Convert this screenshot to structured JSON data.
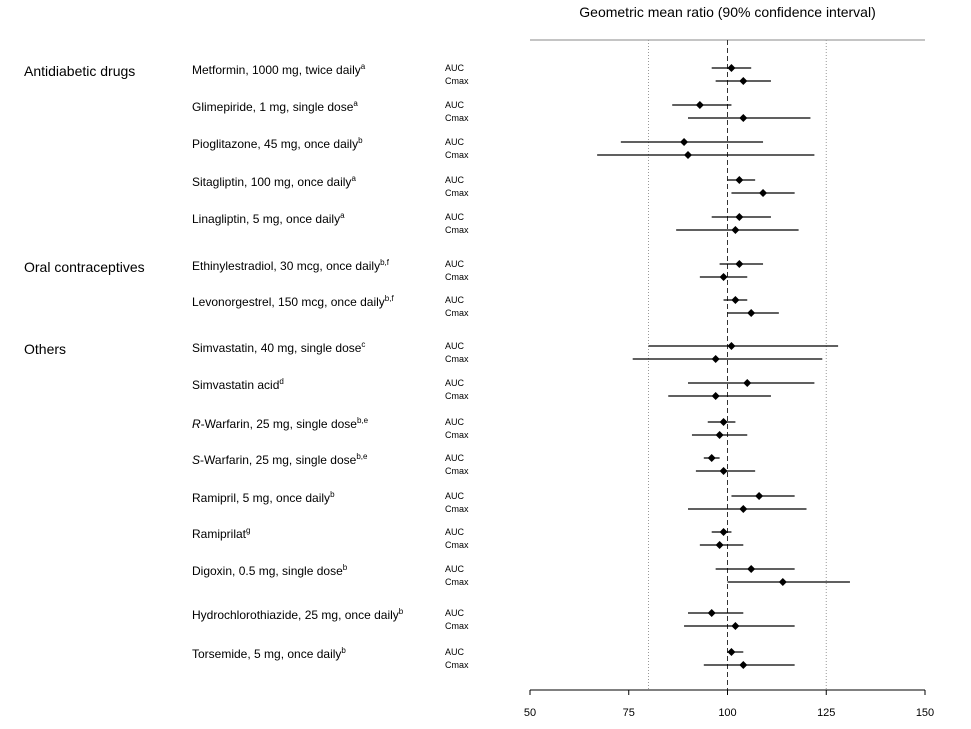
{
  "chart_data": {
    "type": "forest",
    "title": "Geometric mean ratio (90% confidence interval)",
    "xlim": [
      50,
      150
    ],
    "xticks": [
      "50",
      "75",
      "100",
      "125",
      "150"
    ],
    "reference_line": 100,
    "dotted_lines": [
      80,
      125
    ],
    "measure_labels": [
      "AUC",
      "Cmax"
    ],
    "groups": [
      {
        "name": "Antidiabetic drugs",
        "drugs": [
          {
            "label": "Metformin, 1000 mg, twice daily",
            "sup": "a",
            "auc": {
              "est": 101,
              "lo": 96,
              "hi": 106
            },
            "cmax": {
              "est": 104,
              "lo": 97,
              "hi": 111
            }
          },
          {
            "label": "Glimepiride, 1 mg, single dose",
            "sup": "a",
            "auc": {
              "est": 93,
              "lo": 86,
              "hi": 101
            },
            "cmax": {
              "est": 104,
              "lo": 90,
              "hi": 121
            }
          },
          {
            "label": "Pioglitazone, 45 mg, once daily",
            "sup": "b",
            "auc": {
              "est": 89,
              "lo": 73,
              "hi": 109
            },
            "cmax": {
              "est": 90,
              "lo": 67,
              "hi": 122
            }
          },
          {
            "label": "Sitagliptin, 100 mg, once daily",
            "sup": "a",
            "auc": {
              "est": 103,
              "lo": 100,
              "hi": 107
            },
            "cmax": {
              "est": 109,
              "lo": 101,
              "hi": 117
            }
          },
          {
            "label": "Linagliptin, 5 mg, once daily",
            "sup": "a",
            "auc": {
              "est": 103,
              "lo": 96,
              "hi": 111
            },
            "cmax": {
              "est": 102,
              "lo": 87,
              "hi": 118
            }
          }
        ]
      },
      {
        "name": "Oral contraceptives",
        "drugs": [
          {
            "label": "Ethinylestradiol, 30 mcg, once daily",
            "sup": "b,f",
            "auc": {
              "est": 103,
              "lo": 98,
              "hi": 109
            },
            "cmax": {
              "est": 99,
              "lo": 93,
              "hi": 105
            }
          },
          {
            "label": "Levonorgestrel, 150 mcg, once daily",
            "sup": "b,f",
            "auc": {
              "est": 102,
              "lo": 99,
              "hi": 105
            },
            "cmax": {
              "est": 106,
              "lo": 100,
              "hi": 113
            }
          }
        ]
      },
      {
        "name": "Others",
        "drugs": [
          {
            "label": "Simvastatin, 40 mg, single dose",
            "sup": "c",
            "auc": {
              "est": 101,
              "lo": 80,
              "hi": 128
            },
            "cmax": {
              "est": 97,
              "lo": 76,
              "hi": 124
            }
          },
          {
            "label": "Simvastatin acid",
            "sup": "d",
            "auc": {
              "est": 105,
              "lo": 90,
              "hi": 122
            },
            "cmax": {
              "est": 97,
              "lo": 85,
              "hi": 111
            }
          },
          {
            "label": "-Warfarin, 25 mg, single dose",
            "italic_prefix": "R",
            "sup": "b,e",
            "auc": {
              "est": 99,
              "lo": 95,
              "hi": 102
            },
            "cmax": {
              "est": 98,
              "lo": 91,
              "hi": 105
            }
          },
          {
            "label": "-Warfarin, 25 mg, single dose",
            "italic_prefix": "S",
            "sup": "b,e",
            "auc": {
              "est": 96,
              "lo": 94,
              "hi": 98
            },
            "cmax": {
              "est": 99,
              "lo": 92,
              "hi": 107
            }
          },
          {
            "label": "Ramipril, 5 mg, once daily",
            "sup": "b",
            "auc": {
              "est": 108,
              "lo": 101,
              "hi": 117
            },
            "cmax": {
              "est": 104,
              "lo": 90,
              "hi": 120
            }
          },
          {
            "label": "Ramiprilat",
            "sup": "g",
            "auc": {
              "est": 99,
              "lo": 96,
              "hi": 101
            },
            "cmax": {
              "est": 98,
              "lo": 93,
              "hi": 104
            }
          },
          {
            "label": "Digoxin, 0.5 mg, single dose",
            "sup": "b",
            "auc": {
              "est": 106,
              "lo": 97,
              "hi": 117
            },
            "cmax": {
              "est": 114,
              "lo": 100,
              "hi": 131
            }
          },
          {
            "label": "Hydrochlorothiazide, 25 mg, once daily",
            "sup": "b",
            "auc": {
              "est": 96,
              "lo": 90,
              "hi": 104
            },
            "cmax": {
              "est": 102,
              "lo": 89,
              "hi": 117
            }
          },
          {
            "label": "Torsemide, 5 mg, once daily",
            "sup": "b",
            "auc": {
              "est": 101,
              "lo": 100,
              "hi": 104
            },
            "cmax": {
              "est": 104,
              "lo": 94,
              "hi": 117
            }
          }
        ]
      }
    ]
  }
}
